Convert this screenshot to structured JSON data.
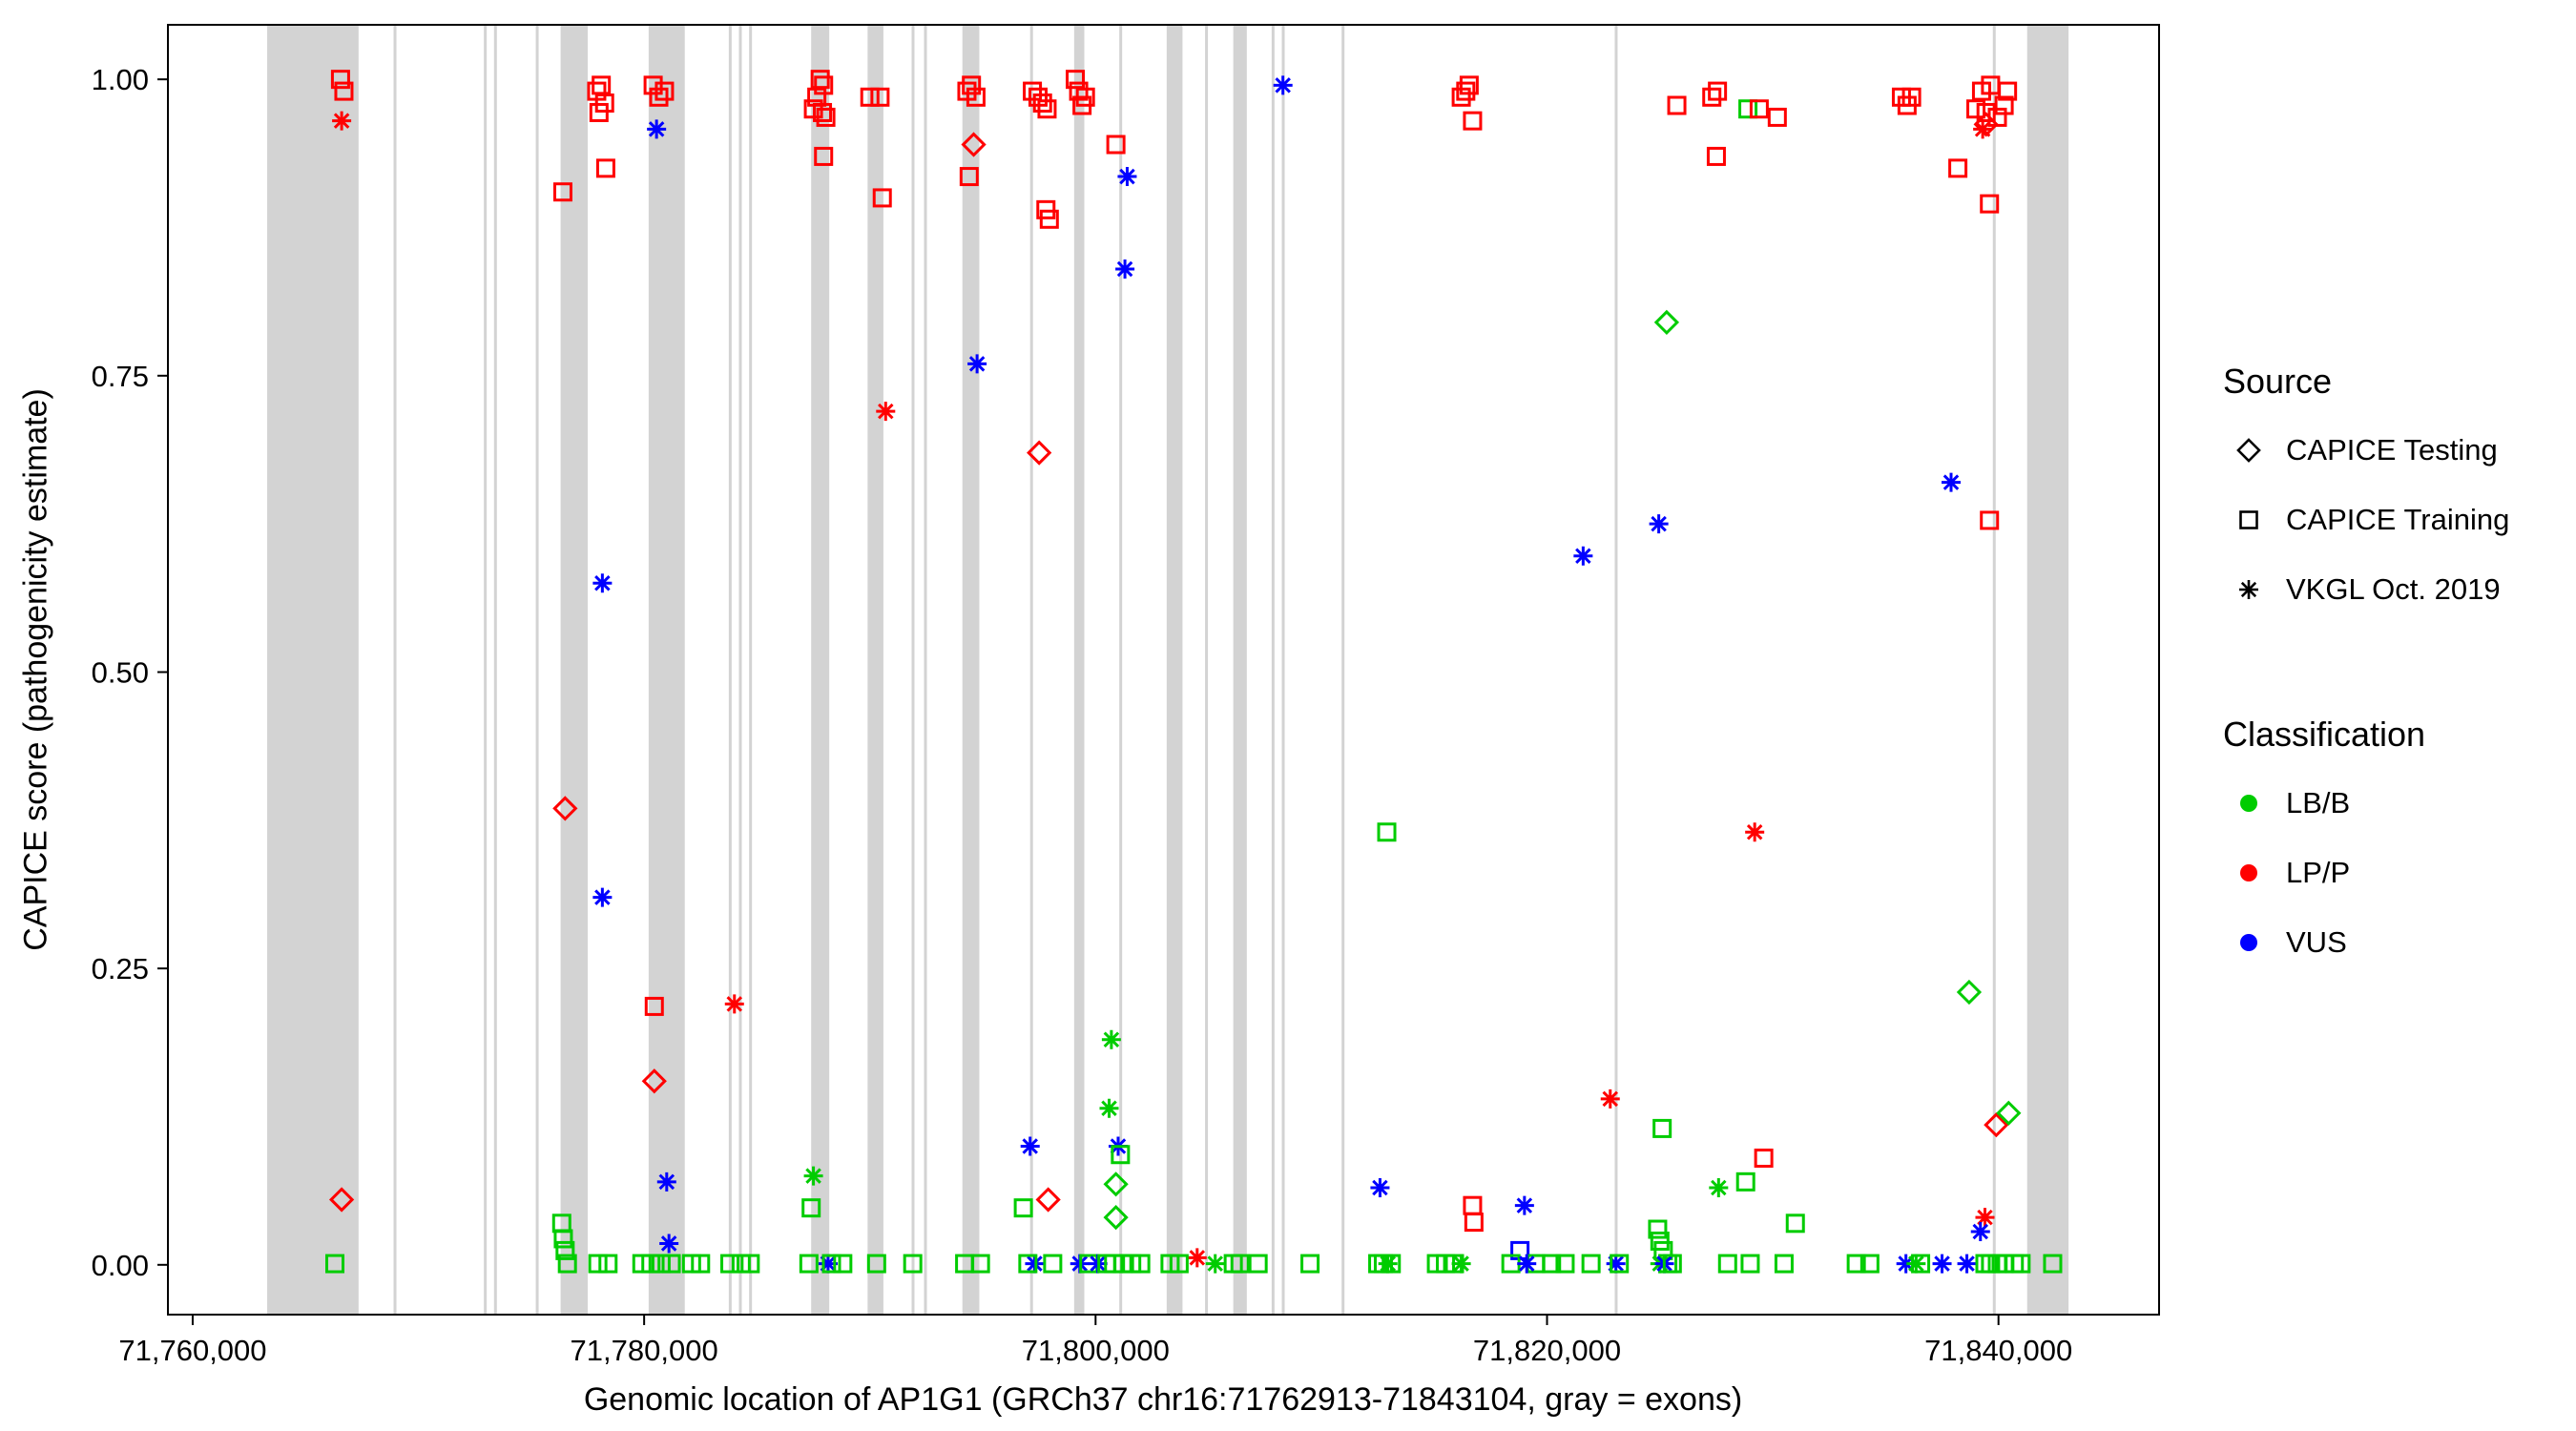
{
  "chart_data": {
    "type": "scatter",
    "title": "",
    "xlabel": "Genomic location of AP1G1 (GRCh37 chr16:71762913-71843104, gray = exons)",
    "ylabel": "CAPICE score (pathogenicity estimate)",
    "xlim": [
      71758903,
      71847114
    ],
    "ylim": [
      -0.042,
      1.046
    ],
    "grid": false,
    "x_ticks": {
      "values": [
        71760000,
        71780000,
        71800000,
        71820000,
        71840000
      ],
      "labels": [
        "71,760,000",
        "71,780,000",
        "71,800,000",
        "71,820,000",
        "71,840,000"
      ]
    },
    "y_ticks": {
      "values": [
        0,
        0.25,
        0.5,
        0.75,
        1.0
      ],
      "labels": [
        "0.00",
        "0.25",
        "0.50",
        "0.75",
        "1.00"
      ]
    },
    "exon_color": "#d3d3d3",
    "exons": [
      [
        71763300,
        71767350
      ],
      [
        71768900,
        71769000
      ],
      [
        71772900,
        71773000
      ],
      [
        71773350,
        71773450
      ],
      [
        71775200,
        71775300
      ],
      [
        71776300,
        71777500
      ],
      [
        71780200,
        71781800
      ],
      [
        71783750,
        71783850
      ],
      [
        71784200,
        71784300
      ],
      [
        71784650,
        71784750
      ],
      [
        71787400,
        71788200
      ],
      [
        71789900,
        71790600
      ],
      [
        71791850,
        71791950
      ],
      [
        71792400,
        71792500
      ],
      [
        71794100,
        71794850
      ],
      [
        71797100,
        71797200
      ],
      [
        71799050,
        71799500
      ],
      [
        71801050,
        71801150
      ],
      [
        71803150,
        71803850
      ],
      [
        71804850,
        71804950
      ],
      [
        71806100,
        71806700
      ],
      [
        71807800,
        71807900
      ],
      [
        71808250,
        71808350
      ],
      [
        71810900,
        71811000
      ],
      [
        71823000,
        71823100
      ],
      [
        71839750,
        71839850
      ],
      [
        71841270,
        71843104
      ]
    ],
    "classification_colors": {
      "LB/B": "#00cc00",
      "LP/P": "#ff0000",
      "VUS": "#0000ff"
    },
    "source_shapes": {
      "testing": "diamond",
      "training": "square",
      "vkgl": "asterisk"
    },
    "legend": {
      "source_title": "Source",
      "source_items": [
        {
          "key": "testing",
          "label": "CAPICE Testing"
        },
        {
          "key": "training",
          "label": "CAPICE Training"
        },
        {
          "key": "vkgl",
          "label": "VKGL Oct. 2019"
        }
      ],
      "classification_title": "Classification",
      "classification_items": [
        {
          "key": "LB/B",
          "label": "LB/B"
        },
        {
          "key": "LP/P",
          "label": "LP/P"
        },
        {
          "key": "VUS",
          "label": "VUS"
        }
      ]
    },
    "points": [
      [
        71766550,
        1.0,
        "training",
        "LP/P"
      ],
      [
        71766700,
        0.99,
        "training",
        "LP/P"
      ],
      [
        71766600,
        0.965,
        "vkgl",
        "LP/P"
      ],
      [
        71766600,
        0.055,
        "testing",
        "LP/P"
      ],
      [
        71766300,
        0.001,
        "training",
        "LB/B"
      ],
      [
        71776400,
        0.905,
        "training",
        "LP/P"
      ],
      [
        71776500,
        0.385,
        "testing",
        "LP/P"
      ],
      [
        71776350,
        0.035,
        "training",
        "LB/B"
      ],
      [
        71776420,
        0.022,
        "training",
        "LB/B"
      ],
      [
        71776500,
        0.012,
        "training",
        "LB/B"
      ],
      [
        71776600,
        0.001,
        "training",
        "LB/B"
      ],
      [
        71777900,
        0.99,
        "training",
        "LP/P"
      ],
      [
        71778100,
        0.995,
        "training",
        "LP/P"
      ],
      [
        71778250,
        0.98,
        "training",
        "LP/P"
      ],
      [
        71778000,
        0.972,
        "training",
        "LP/P"
      ],
      [
        71778300,
        0.925,
        "training",
        "LP/P"
      ],
      [
        71778150,
        0.575,
        "vkgl",
        "VUS"
      ],
      [
        71778150,
        0.31,
        "vkgl",
        "VUS"
      ],
      [
        71777950,
        0.001,
        "training",
        "LB/B"
      ],
      [
        71778400,
        0.001,
        "training",
        "LB/B"
      ],
      [
        71780400,
        0.995,
        "training",
        "LP/P"
      ],
      [
        71780650,
        0.985,
        "training",
        "LP/P"
      ],
      [
        71780900,
        0.99,
        "training",
        "LP/P"
      ],
      [
        71780550,
        0.958,
        "vkgl",
        "VUS"
      ],
      [
        71780450,
        0.218,
        "training",
        "LP/P"
      ],
      [
        71780450,
        0.155,
        "testing",
        "LP/P"
      ],
      [
        71781000,
        0.07,
        "vkgl",
        "VUS"
      ],
      [
        71781100,
        0.018,
        "vkgl",
        "VUS"
      ],
      [
        71779900,
        0.001,
        "training",
        "LB/B"
      ],
      [
        71780300,
        0.001,
        "training",
        "LB/B"
      ],
      [
        71780750,
        0.001,
        "training",
        "LB/B"
      ],
      [
        71781200,
        0.001,
        "training",
        "LB/B"
      ],
      [
        71784000,
        0.22,
        "vkgl",
        "LP/P"
      ],
      [
        71783800,
        0.001,
        "training",
        "LB/B"
      ],
      [
        71784300,
        0.001,
        "training",
        "LB/B"
      ],
      [
        71784700,
        0.001,
        "training",
        "LB/B"
      ],
      [
        71782100,
        0.001,
        "training",
        "LB/B"
      ],
      [
        71782500,
        0.001,
        "training",
        "LB/B"
      ],
      [
        71787500,
        0.975,
        "training",
        "LP/P"
      ],
      [
        71787650,
        0.985,
        "training",
        "LP/P"
      ],
      [
        71787800,
        1.0,
        "training",
        "LP/P"
      ],
      [
        71787950,
        0.995,
        "training",
        "LP/P"
      ],
      [
        71787900,
        0.972,
        "training",
        "LP/P"
      ],
      [
        71788050,
        0.968,
        "training",
        "LP/P"
      ],
      [
        71787950,
        0.935,
        "training",
        "LP/P"
      ],
      [
        71787500,
        0.075,
        "vkgl",
        "LB/B"
      ],
      [
        71787400,
        0.048,
        "training",
        "LB/B"
      ],
      [
        71788150,
        0.001,
        "vkgl",
        "VUS"
      ],
      [
        71787300,
        0.001,
        "training",
        "LB/B"
      ],
      [
        71788300,
        0.001,
        "training",
        "LB/B"
      ],
      [
        71788800,
        0.001,
        "training",
        "LB/B"
      ],
      [
        71790000,
        0.985,
        "training",
        "LP/P"
      ],
      [
        71790450,
        0.985,
        "training",
        "LP/P"
      ],
      [
        71790550,
        0.9,
        "training",
        "LP/P"
      ],
      [
        71790700,
        0.72,
        "vkgl",
        "LP/P"
      ],
      [
        71790300,
        0.001,
        "training",
        "LB/B"
      ],
      [
        71791900,
        0.001,
        "training",
        "LB/B"
      ],
      [
        71794300,
        0.99,
        "training",
        "LP/P"
      ],
      [
        71794500,
        0.995,
        "training",
        "LP/P"
      ],
      [
        71794700,
        0.985,
        "training",
        "LP/P"
      ],
      [
        71794600,
        0.945,
        "testing",
        "LP/P"
      ],
      [
        71794400,
        0.918,
        "training",
        "LP/P"
      ],
      [
        71794750,
        0.76,
        "vkgl",
        "VUS"
      ],
      [
        71794200,
        0.001,
        "training",
        "LB/B"
      ],
      [
        71794900,
        0.001,
        "training",
        "LB/B"
      ],
      [
        71797200,
        0.99,
        "training",
        "LP/P"
      ],
      [
        71797450,
        0.985,
        "training",
        "LP/P"
      ],
      [
        71797650,
        0.98,
        "training",
        "LP/P"
      ],
      [
        71797850,
        0.975,
        "training",
        "LP/P"
      ],
      [
        71797500,
        0.685,
        "testing",
        "LP/P"
      ],
      [
        71797800,
        0.89,
        "training",
        "LP/P"
      ],
      [
        71797950,
        0.882,
        "training",
        "LP/P"
      ],
      [
        71796800,
        0.048,
        "training",
        "LB/B"
      ],
      [
        71797900,
        0.055,
        "testing",
        "LP/P"
      ],
      [
        71797100,
        0.1,
        "vkgl",
        "VUS"
      ],
      [
        71797300,
        0.001,
        "vkgl",
        "VUS"
      ],
      [
        71797000,
        0.001,
        "training",
        "LB/B"
      ],
      [
        71798100,
        0.001,
        "training",
        "LB/B"
      ],
      [
        71799100,
        1.0,
        "training",
        "LP/P"
      ],
      [
        71799250,
        0.99,
        "training",
        "LP/P"
      ],
      [
        71799400,
        0.978,
        "training",
        "LP/P"
      ],
      [
        71799550,
        0.985,
        "training",
        "LP/P"
      ],
      [
        71799300,
        0.001,
        "vkgl",
        "VUS"
      ],
      [
        71799700,
        0.001,
        "training",
        "LB/B"
      ],
      [
        71800100,
        0.001,
        "vkgl",
        "VUS"
      ],
      [
        71800900,
        0.945,
        "training",
        "LP/P"
      ],
      [
        71801400,
        0.918,
        "vkgl",
        "VUS"
      ],
      [
        71801300,
        0.84,
        "vkgl",
        "VUS"
      ],
      [
        71800700,
        0.19,
        "vkgl",
        "LB/B"
      ],
      [
        71800600,
        0.132,
        "vkgl",
        "LB/B"
      ],
      [
        71801000,
        0.1,
        "vkgl",
        "VUS"
      ],
      [
        71801100,
        0.093,
        "training",
        "LB/B"
      ],
      [
        71800900,
        0.068,
        "testing",
        "LB/B"
      ],
      [
        71800900,
        0.04,
        "testing",
        "LB/B"
      ],
      [
        71800500,
        0.001,
        "training",
        "LB/B"
      ],
      [
        71800800,
        0.001,
        "training",
        "LB/B"
      ],
      [
        71801200,
        0.001,
        "training",
        "LB/B"
      ],
      [
        71801600,
        0.001,
        "training",
        "LB/B"
      ],
      [
        71802000,
        0.001,
        "training",
        "LB/B"
      ],
      [
        71804500,
        0.006,
        "vkgl",
        "LP/P"
      ],
      [
        71805300,
        0.001,
        "vkgl",
        "LB/B"
      ],
      [
        71806100,
        0.001,
        "training",
        "LB/B"
      ],
      [
        71806400,
        0.001,
        "training",
        "LB/B"
      ],
      [
        71803300,
        0.001,
        "training",
        "LB/B"
      ],
      [
        71803700,
        0.001,
        "training",
        "LB/B"
      ],
      [
        71808300,
        0.995,
        "vkgl",
        "VUS"
      ],
      [
        71809500,
        0.001,
        "training",
        "LB/B"
      ],
      [
        71807200,
        0.001,
        "training",
        "LB/B"
      ],
      [
        71812900,
        0.365,
        "training",
        "LB/B"
      ],
      [
        71812600,
        0.065,
        "vkgl",
        "VUS"
      ],
      [
        71812500,
        0.001,
        "training",
        "LB/B"
      ],
      [
        71812750,
        0.001,
        "training",
        "LB/B"
      ],
      [
        71812950,
        0.001,
        "vkgl",
        "LB/B"
      ],
      [
        71813100,
        0.001,
        "training",
        "LB/B"
      ],
      [
        71816200,
        0.985,
        "training",
        "LP/P"
      ],
      [
        71816400,
        0.99,
        "training",
        "LP/P"
      ],
      [
        71816550,
        0.995,
        "training",
        "LP/P"
      ],
      [
        71816700,
        0.965,
        "training",
        "LP/P"
      ],
      [
        71816700,
        0.05,
        "training",
        "LP/P"
      ],
      [
        71816760,
        0.036,
        "training",
        "LP/P"
      ],
      [
        71815100,
        0.001,
        "training",
        "LB/B"
      ],
      [
        71815500,
        0.001,
        "training",
        "LB/B"
      ],
      [
        71815900,
        0.001,
        "training",
        "LB/B"
      ],
      [
        71816200,
        0.001,
        "vkgl",
        "LB/B"
      ],
      [
        71819000,
        0.05,
        "vkgl",
        "VUS"
      ],
      [
        71818800,
        0.012,
        "training",
        "VUS"
      ],
      [
        71818400,
        0.001,
        "training",
        "LB/B"
      ],
      [
        71819500,
        0.001,
        "training",
        "LB/B"
      ],
      [
        71820200,
        0.001,
        "training",
        "LB/B"
      ],
      [
        71820800,
        0.001,
        "training",
        "LB/B"
      ],
      [
        71821600,
        0.598,
        "vkgl",
        "VUS"
      ],
      [
        71821950,
        0.001,
        "training",
        "LB/B"
      ],
      [
        71819100,
        0.001,
        "vkgl",
        "VUS"
      ],
      [
        71822800,
        0.14,
        "vkgl",
        "LP/P"
      ],
      [
        71823050,
        0.001,
        "vkgl",
        "VUS"
      ],
      [
        71823200,
        0.001,
        "training",
        "LB/B"
      ],
      [
        71824950,
        0.625,
        "vkgl",
        "VUS"
      ],
      [
        71825300,
        0.795,
        "testing",
        "LB/B"
      ],
      [
        71825750,
        0.978,
        "training",
        "LP/P"
      ],
      [
        71825100,
        0.115,
        "training",
        "LB/B"
      ],
      [
        71824900,
        0.03,
        "training",
        "LB/B"
      ],
      [
        71825000,
        0.02,
        "training",
        "LB/B"
      ],
      [
        71825150,
        0.012,
        "training",
        "LB/B"
      ],
      [
        71825000,
        0.001,
        "vkgl",
        "LB/B"
      ],
      [
        71825350,
        0.001,
        "training",
        "LB/B"
      ],
      [
        71825200,
        0.001,
        "vkgl",
        "VUS"
      ],
      [
        71825550,
        0.001,
        "training",
        "LB/B"
      ],
      [
        71827300,
        0.985,
        "training",
        "LP/P"
      ],
      [
        71827550,
        0.99,
        "training",
        "LP/P"
      ],
      [
        71827500,
        0.935,
        "training",
        "LP/P"
      ],
      [
        71827600,
        0.065,
        "vkgl",
        "LB/B"
      ],
      [
        71828900,
        0.975,
        "training",
        "LB/B"
      ],
      [
        71829400,
        0.975,
        "training",
        "LP/P"
      ],
      [
        71830200,
        0.968,
        "training",
        "LP/P"
      ],
      [
        71829200,
        0.365,
        "vkgl",
        "LP/P"
      ],
      [
        71828800,
        0.07,
        "training",
        "LB/B"
      ],
      [
        71829600,
        0.09,
        "training",
        "LP/P"
      ],
      [
        71831000,
        0.035,
        "training",
        "LB/B"
      ],
      [
        71828000,
        0.001,
        "training",
        "LB/B"
      ],
      [
        71829000,
        0.001,
        "training",
        "LB/B"
      ],
      [
        71830500,
        0.001,
        "training",
        "LB/B"
      ],
      [
        71833700,
        0.001,
        "training",
        "LB/B"
      ],
      [
        71834300,
        0.001,
        "training",
        "LB/B"
      ],
      [
        71835700,
        0.985,
        "training",
        "LP/P"
      ],
      [
        71835950,
        0.978,
        "training",
        "LP/P"
      ],
      [
        71836150,
        0.985,
        "training",
        "LP/P"
      ],
      [
        71835900,
        0.001,
        "vkgl",
        "VUS"
      ],
      [
        71836350,
        0.001,
        "vkgl",
        "LB/B"
      ],
      [
        71836550,
        0.001,
        "training",
        "LB/B"
      ],
      [
        71837900,
        0.66,
        "vkgl",
        "VUS"
      ],
      [
        71838200,
        0.925,
        "training",
        "LP/P"
      ],
      [
        71839000,
        0.975,
        "training",
        "LP/P"
      ],
      [
        71839250,
        0.99,
        "training",
        "LP/P"
      ],
      [
        71839450,
        0.972,
        "training",
        "LP/P"
      ],
      [
        71839650,
        0.995,
        "training",
        "LP/P"
      ],
      [
        71839950,
        0.968,
        "training",
        "LP/P"
      ],
      [
        71840250,
        0.978,
        "training",
        "LP/P"
      ],
      [
        71840400,
        0.99,
        "training",
        "LP/P"
      ],
      [
        71839300,
        0.958,
        "vkgl",
        "LP/P"
      ],
      [
        71839450,
        0.962,
        "testing",
        "LP/P"
      ],
      [
        71839600,
        0.895,
        "training",
        "LP/P"
      ],
      [
        71839600,
        0.628,
        "training",
        "LP/P"
      ],
      [
        71838700,
        0.23,
        "testing",
        "LB/B"
      ],
      [
        71839900,
        0.118,
        "testing",
        "LP/P"
      ],
      [
        71840450,
        0.128,
        "testing",
        "LB/B"
      ],
      [
        71839400,
        0.04,
        "vkgl",
        "LP/P"
      ],
      [
        71837500,
        0.001,
        "vkgl",
        "VUS"
      ],
      [
        71838600,
        0.001,
        "vkgl",
        "VUS"
      ],
      [
        71839200,
        0.028,
        "vkgl",
        "VUS"
      ],
      [
        71839400,
        0.001,
        "training",
        "LB/B"
      ],
      [
        71839650,
        0.001,
        "training",
        "LB/B"
      ],
      [
        71839950,
        0.001,
        "training",
        "LB/B"
      ],
      [
        71840250,
        0.001,
        "training",
        "LB/B"
      ],
      [
        71840700,
        0.001,
        "training",
        "LB/B"
      ],
      [
        71841000,
        0.001,
        "training",
        "LB/B"
      ],
      [
        71842400,
        0.001,
        "training",
        "LB/B"
      ]
    ]
  }
}
